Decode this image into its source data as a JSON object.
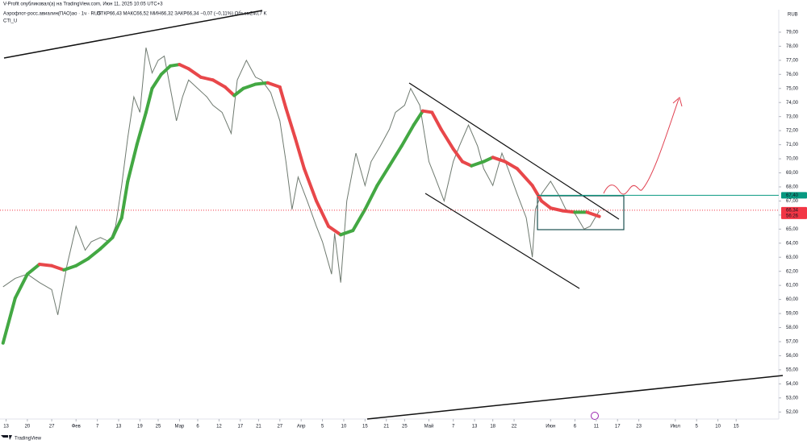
{
  "header": {
    "publisher": "V-Profit опубликовал(а) на TradingView.com, Июн 11, 2025 10:05 UTC+3",
    "symbol": "Аэрофлот-росс.авиалин(ПАО)ао · 1ч · RUS",
    "ohlc": "ОТКР66,43 МАКС66,52 МИН66,32 ЗАКР66,34 −0,07 (−0,11%) Объем240,7 K",
    "indicator": "CTI_U",
    "currency": "RUB",
    "footer": "TradingView"
  },
  "chart_data": {
    "type": "line",
    "xlim": [
      -2,
      254
    ],
    "ylim": [
      51.5,
      80.6
    ],
    "grid": false,
    "xticks": [
      {
        "value": 0,
        "label": "13"
      },
      {
        "value": 7,
        "label": "20"
      },
      {
        "value": 15,
        "label": "27"
      },
      {
        "value": 23,
        "label": "Фев"
      },
      {
        "value": 30,
        "label": "7"
      },
      {
        "value": 37,
        "label": "13"
      },
      {
        "value": 44,
        "label": "19"
      },
      {
        "value": 50,
        "label": "25"
      },
      {
        "value": 57,
        "label": "Мар"
      },
      {
        "value": 63,
        "label": "6"
      },
      {
        "value": 70,
        "label": "12"
      },
      {
        "value": 77,
        "label": "17"
      },
      {
        "value": 83,
        "label": "21"
      },
      {
        "value": 90,
        "label": "27"
      },
      {
        "value": 97,
        "label": "Апр"
      },
      {
        "value": 104,
        "label": "5"
      },
      {
        "value": 111,
        "label": "10"
      },
      {
        "value": 118,
        "label": "15"
      },
      {
        "value": 125,
        "label": "21"
      },
      {
        "value": 131,
        "label": "25"
      },
      {
        "value": 139,
        "label": "Май"
      },
      {
        "value": 147,
        "label": "7"
      },
      {
        "value": 154,
        "label": "13"
      },
      {
        "value": 160,
        "label": "18"
      },
      {
        "value": 167,
        "label": "22"
      },
      {
        "value": 179,
        "label": "Июн"
      },
      {
        "value": 187,
        "label": "6"
      },
      {
        "value": 194,
        "label": "11"
      },
      {
        "value": 201,
        "label": "17"
      },
      {
        "value": 208,
        "label": "23"
      },
      {
        "value": 220,
        "label": "Июл"
      },
      {
        "value": 227,
        "label": "5"
      },
      {
        "value": 234,
        "label": "10"
      },
      {
        "value": 240,
        "label": "15"
      }
    ],
    "yticks": [
      {
        "value": 52,
        "label": "52,00"
      },
      {
        "value": 53,
        "label": "53,00"
      },
      {
        "value": 54,
        "label": "54,00"
      },
      {
        "value": 55,
        "label": "55,00"
      },
      {
        "value": 56,
        "label": "56,00"
      },
      {
        "value": 57,
        "label": "57,00"
      },
      {
        "value": 58,
        "label": "58,00"
      },
      {
        "value": 59,
        "label": "59,00"
      },
      {
        "value": 60,
        "label": "60,00"
      },
      {
        "value": 61,
        "label": "61,00"
      },
      {
        "value": 62,
        "label": "62,00"
      },
      {
        "value": 63,
        "label": "63,00"
      },
      {
        "value": 64,
        "label": "64,00"
      },
      {
        "value": 65,
        "label": "65,00"
      },
      {
        "value": 66,
        "label": "66,00"
      },
      {
        "value": 67,
        "label": "67,00"
      },
      {
        "value": 68,
        "label": "68,00"
      },
      {
        "value": 69,
        "label": "69,00"
      },
      {
        "value": 70,
        "label": "70,00"
      },
      {
        "value": 71,
        "label": "71,00"
      },
      {
        "value": 72,
        "label": "72,00"
      },
      {
        "value": 73,
        "label": "73,00"
      },
      {
        "value": 74,
        "label": "74,00"
      },
      {
        "value": 75,
        "label": "75,00"
      },
      {
        "value": 76,
        "label": "76,00"
      },
      {
        "value": 77,
        "label": "77,00"
      },
      {
        "value": 78,
        "label": "78,00"
      },
      {
        "value": 79,
        "label": "79,00"
      }
    ],
    "price": {
      "color": "#6f7a70",
      "x": [
        -1,
        3,
        7,
        11,
        15,
        17,
        20,
        23,
        26,
        28,
        31,
        34,
        36,
        38,
        40,
        42,
        44,
        46,
        48,
        50,
        52,
        54,
        56,
        58,
        60,
        63,
        66,
        68,
        71,
        74,
        76,
        79,
        82,
        84,
        87,
        90,
        92,
        94,
        96,
        99,
        102,
        104,
        107,
        108,
        110,
        112,
        115,
        118,
        120,
        123,
        126,
        128,
        131,
        133,
        136,
        139,
        141,
        144,
        147,
        149,
        152,
        155,
        157,
        160,
        163,
        165,
        168,
        171,
        173,
        174,
        176,
        179,
        182,
        184,
        187,
        190,
        192,
        195
      ],
      "values": [
        60.9,
        61.5,
        61.8,
        61.2,
        60.7,
        58.9,
        62.4,
        65.2,
        63.5,
        64.1,
        64.4,
        64.1,
        65.2,
        68.1,
        71.5,
        74.4,
        73.3,
        77.9,
        76.1,
        77.0,
        77.3,
        75.0,
        72.7,
        74.4,
        75.6,
        75.0,
        74.4,
        73.8,
        73.3,
        71.8,
        75.6,
        77.0,
        75.8,
        75.6,
        74.7,
        72.7,
        69.8,
        66.4,
        68.7,
        67.0,
        65.2,
        64.1,
        61.8,
        64.7,
        61.2,
        67.0,
        70.4,
        68.1,
        69.8,
        70.9,
        72.1,
        73.3,
        73.8,
        75.0,
        73.8,
        69.8,
        68.7,
        67.0,
        69.8,
        70.9,
        72.4,
        70.9,
        69.3,
        68.1,
        70.4,
        69.3,
        67.5,
        65.8,
        63.0,
        66.4,
        67.5,
        68.4,
        67.3,
        66.4,
        66.1,
        65.0,
        65.2,
        66.3
      ]
    },
    "cti": {
      "up_color": "#43a843",
      "down_color": "#e8474a",
      "x": [
        -1,
        3,
        7,
        11,
        15,
        19,
        23,
        27,
        31,
        35,
        38,
        40,
        43,
        46,
        48,
        51,
        54,
        57,
        60,
        64,
        68,
        72,
        75,
        78,
        82,
        86,
        90,
        92,
        95,
        98,
        102,
        106,
        110,
        114,
        118,
        122,
        126,
        130,
        134,
        137,
        140,
        143,
        147,
        150,
        153,
        157,
        160,
        164,
        168,
        173,
        176,
        179,
        183,
        187,
        191,
        195
      ],
      "values": [
        56.9,
        60.1,
        61.8,
        62.5,
        62.4,
        62.1,
        62.4,
        62.9,
        63.6,
        64.4,
        65.8,
        68.4,
        71.0,
        73.3,
        75.0,
        76.0,
        76.6,
        76.7,
        76.4,
        75.8,
        75.6,
        75.1,
        74.5,
        75.0,
        75.3,
        75.4,
        75.1,
        73.6,
        71.5,
        69.3,
        67.0,
        65.2,
        64.6,
        64.9,
        66.4,
        68.1,
        69.5,
        70.9,
        72.4,
        73.4,
        73.3,
        72.1,
        70.7,
        69.8,
        69.5,
        69.8,
        70.1,
        69.8,
        69.3,
        68.1,
        67.0,
        66.5,
        66.3,
        66.2,
        66.2,
        65.9
      ]
    },
    "price_lines": [
      {
        "value": 67.4,
        "label": "67,40",
        "color": "#089981"
      },
      {
        "value": 66.34,
        "label": "66,34",
        "color": "#f23645",
        "countdown": "56:26"
      }
    ]
  }
}
